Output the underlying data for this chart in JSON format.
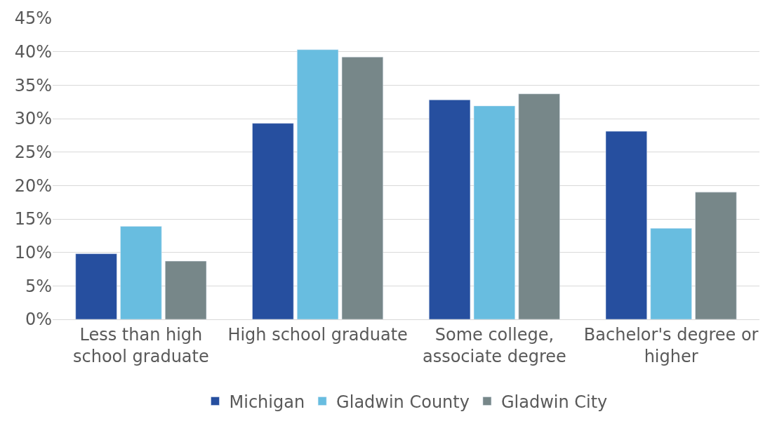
{
  "chart_data": {
    "type": "bar",
    "categories": [
      "Less than high school graduate",
      "High school graduate",
      "Some college, associate degree",
      "Bachelor's degree or higher"
    ],
    "series": [
      {
        "name": "Michigan",
        "color": "#264f9f",
        "values": [
          9.8,
          29.3,
          32.8,
          28.1
        ]
      },
      {
        "name": "Gladwin County",
        "color": "#68bde0",
        "values": [
          13.9,
          40.3,
          31.9,
          13.6
        ]
      },
      {
        "name": "Gladwin City",
        "color": "#778789",
        "values": [
          8.7,
          39.2,
          33.7,
          19.0
        ]
      }
    ],
    "ylim": [
      0,
      45
    ],
    "yticks": [
      {
        "value": 0,
        "label": "0%"
      },
      {
        "value": 5,
        "label": "5%"
      },
      {
        "value": 10,
        "label": "10%"
      },
      {
        "value": 15,
        "label": "15%"
      },
      {
        "value": 20,
        "label": "20%"
      },
      {
        "value": 25,
        "label": "25%"
      },
      {
        "value": 30,
        "label": "30%"
      },
      {
        "value": 35,
        "label": "35%"
      },
      {
        "value": 40,
        "label": "40%"
      },
      {
        "value": 45,
        "label": "45%"
      }
    ],
    "grid": "y",
    "legend": "bottom"
  }
}
